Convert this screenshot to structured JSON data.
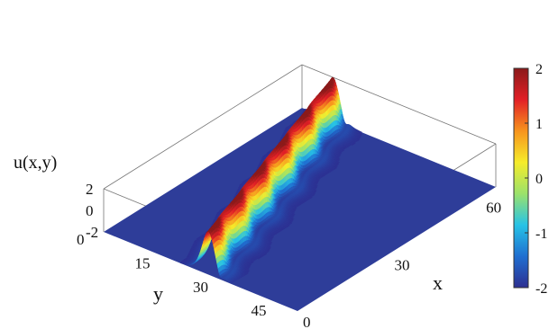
{
  "chart_data": {
    "type": "surface3d",
    "title": "",
    "xlabel": "x",
    "ylabel": "y",
    "zlabel": "u(x,y)",
    "x_ticks": [
      "0",
      "30",
      "60"
    ],
    "y_ticks": [
      "0",
      "15",
      "30",
      "45"
    ],
    "z_ticks": [
      "2",
      "0",
      "-2"
    ],
    "xlim": [
      0,
      65
    ],
    "ylim": [
      0,
      50
    ],
    "zlim": [
      -2,
      2
    ],
    "baseline_value": -2,
    "wave": {
      "description_type": "line-soliton",
      "peak_amplitude": 2,
      "crest_ridges": [
        {
          "x": 0,
          "y": 27
        },
        {
          "x": 65,
          "y": 8
        }
      ],
      "trough_line": [
        {
          "x": 0,
          "y": 30
        },
        {
          "x": 65,
          "y": 11
        }
      ],
      "modulation_periods": 5.5
    },
    "colorbar": {
      "ticks": [
        "2",
        "1",
        "0",
        "-1",
        "-2"
      ],
      "range": [
        -2,
        2
      ],
      "colormap": "jet",
      "colors": [
        "#2d2f91",
        "#1f6fd1",
        "#27c3e6",
        "#9be26b",
        "#f6ec2a",
        "#f7941d",
        "#e21f26",
        "#8b1a1a"
      ]
    },
    "grid": false,
    "legend": "colorbar-right"
  }
}
